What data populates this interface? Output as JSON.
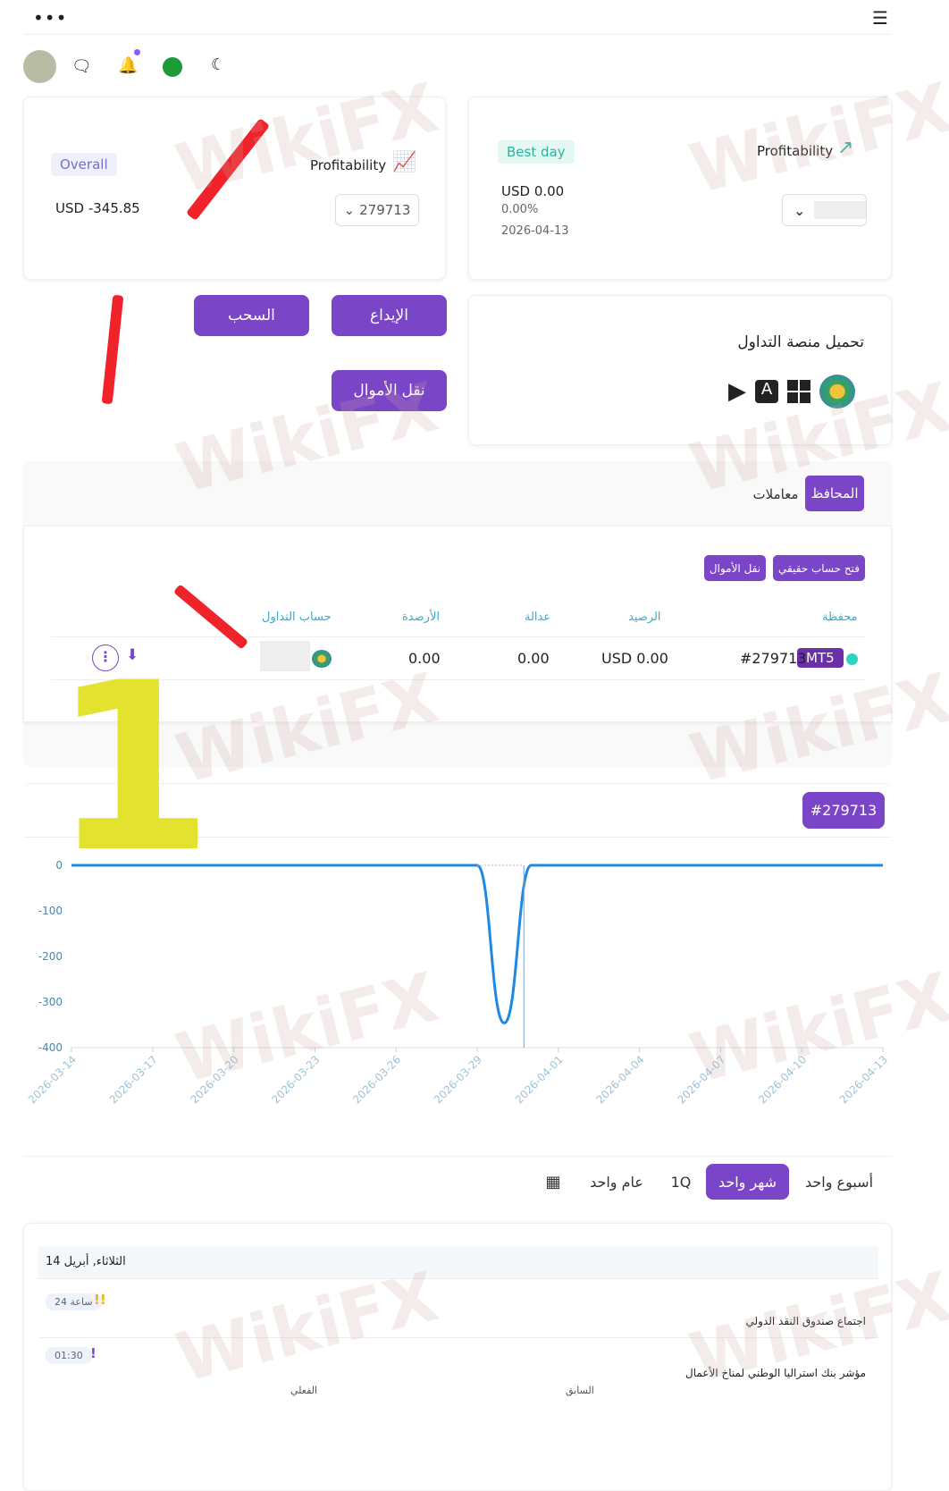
{
  "topbar": {
    "more_icon": "ellipsis-icon",
    "menu_icon": "hamburger-icon"
  },
  "header_icons": [
    "avatar",
    "chat-icon",
    "bell-icon",
    "saudi-flag-icon",
    "moon-icon"
  ],
  "overall_card": {
    "badge": "Overall",
    "title": "Profitability",
    "value": "USD -345.85",
    "account_select": "279713"
  },
  "best_day_card": {
    "badge": "Best day",
    "title": "Profitability",
    "value": "USD 0.00",
    "percent": "0.00%",
    "date": "2026-04-13"
  },
  "actions": {
    "withdraw": "السحب",
    "deposit": "الإيداع",
    "transfer": "نقل الأموال"
  },
  "platform": {
    "title": "تحميل منصة التداول",
    "icons": [
      "google-play-icon",
      "app-store-icon",
      "windows-icon",
      "metatrader-icon"
    ]
  },
  "wallet_tabs": [
    {
      "label": "المحافظ",
      "active": true
    },
    {
      "label": "معاملات",
      "active": false
    }
  ],
  "wallet_buttons": {
    "open_real": "فتح حساب حقيقي",
    "transfer": "نقل الأموال"
  },
  "table": {
    "headers": [
      "محفظة",
      "الرصيد",
      "عدالة",
      "الأرصدة",
      "حساب التداول"
    ],
    "rows": [
      {
        "wallet": "#279713",
        "platform": "MT5",
        "balance": "USD 0.00",
        "equity": "0.00",
        "credits": "0.00"
      }
    ]
  },
  "chart_header": {
    "account": "#279713"
  },
  "chart_data": {
    "type": "line",
    "x": [
      "2026-03-14",
      "2026-03-15",
      "2026-03-16",
      "2026-03-17",
      "2026-03-18",
      "2026-03-19",
      "2026-03-20",
      "2026-03-21",
      "2026-03-22",
      "2026-03-23",
      "2026-03-24",
      "2026-03-25",
      "2026-03-26",
      "2026-03-27",
      "2026-03-28",
      "2026-03-29",
      "2026-03-30",
      "2026-03-31",
      "2026-04-01",
      "2026-04-02",
      "2026-04-03",
      "2026-04-04",
      "2026-04-05",
      "2026-04-06",
      "2026-04-07",
      "2026-04-08",
      "2026-04-09",
      "2026-04-10",
      "2026-04-11",
      "2026-04-12",
      "2026-04-13"
    ],
    "values": [
      0,
      0,
      0,
      0,
      0,
      0,
      0,
      0,
      0,
      0,
      0,
      0,
      0,
      0,
      0,
      0,
      -345.85,
      0,
      0,
      0,
      0,
      0,
      0,
      0,
      0,
      0,
      0,
      0,
      0,
      0,
      0
    ],
    "xticks": [
      "2026-03-14",
      "2026-03-17",
      "2026-03-20",
      "2026-03-23",
      "2026-03-26",
      "2026-03-29",
      "2026-04-01",
      "2026-04-04",
      "2026-04-07",
      "2026-04-10",
      "2026-04-13"
    ],
    "yticks": [
      "0",
      "-100",
      "-200",
      "-300",
      "-400"
    ],
    "ylim": [
      -400,
      0
    ],
    "color": "#1e88e5",
    "grid": false
  },
  "periods": [
    {
      "label": "أسبوع واحد",
      "active": false
    },
    {
      "label": "شهر واحد",
      "active": true
    },
    {
      "label": "1Q",
      "active": false
    },
    {
      "label": "عام واحد",
      "active": false
    }
  ],
  "calendar": {
    "date_header": "الثلاثاء, أبريل 14",
    "events": [
      {
        "time": "24 ساعة",
        "importance": "!!",
        "title": "اجتماع صندوق النقد الدولي"
      },
      {
        "time": "01:30",
        "importance": "!",
        "title": "مؤشر بنك استراليا الوطني لمناخ الأعمال",
        "previous_label": "السابق",
        "actual_label": "الفعلي"
      }
    ]
  },
  "annotation": {
    "number": "1"
  },
  "watermark": "WikiFX",
  "colors": {
    "accent": "#7b45c8",
    "header_text": "#3fa9c9",
    "status_dot": "#2dd4bf"
  }
}
